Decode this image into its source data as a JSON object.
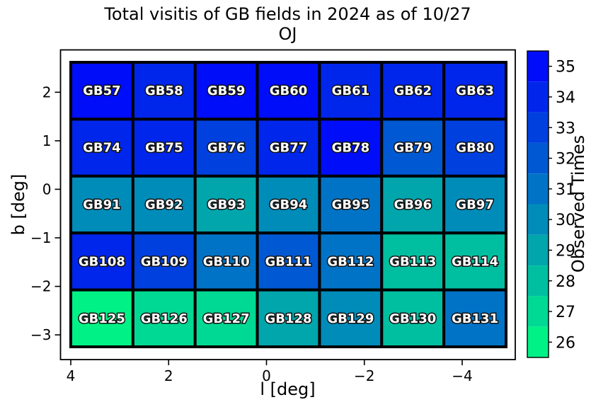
{
  "title": {
    "line1": "Total visitis of GB fields in 2024 as of 10/27",
    "line2": "OJ"
  },
  "axes": {
    "xlabel": "l [deg]",
    "ylabel": "b [deg]"
  },
  "colorbar": {
    "label": "Observed Times",
    "tick_labels": [
      "26",
      "27",
      "28",
      "29",
      "30",
      "31",
      "32",
      "33",
      "34",
      "35"
    ],
    "tick_values": [
      26,
      27,
      28,
      29,
      30,
      31,
      32,
      33,
      34,
      35
    ],
    "vmin": 25.5,
    "vmax": 35.5,
    "colormap": "winter_r",
    "color_low": "#00f286",
    "color_high": "#000df9"
  },
  "chart_data": {
    "type": "heatmap",
    "title": "Total visitis of GB fields in 2024 as of 10/27 OJ",
    "xlabel": "l [deg]",
    "ylabel": "b [deg]",
    "colorbar_label": "Observed Times",
    "colormap": "winter_r",
    "value_range": [
      25.5,
      35.5
    ],
    "x_tick_labels": [
      "4",
      "2",
      "0",
      "−2",
      "−4"
    ],
    "x_tick_values": [
      4,
      2,
      0,
      -2,
      -4
    ],
    "y_tick_labels": [
      "2",
      "1",
      "0",
      "−1",
      "−2",
      "−3"
    ],
    "y_tick_values": [
      2,
      1,
      0,
      -1,
      -2,
      -3
    ],
    "x_axis_inverted": true,
    "grid_on": false,
    "rows": [
      {
        "fields": [
          "GB57",
          "GB58",
          "GB59",
          "GB60",
          "GB61",
          "GB62",
          "GB63"
        ],
        "values": [
          35,
          34,
          35,
          35,
          34,
          34,
          34
        ]
      },
      {
        "fields": [
          "GB74",
          "GB75",
          "GB76",
          "GB77",
          "GB78",
          "GB79",
          "GB80"
        ],
        "values": [
          34,
          34,
          33,
          34,
          35,
          32,
          33
        ]
      },
      {
        "fields": [
          "GB91",
          "GB92",
          "GB93",
          "GB94",
          "GB95",
          "GB96",
          "GB97"
        ],
        "values": [
          30,
          30,
          29,
          30,
          31,
          29,
          30
        ]
      },
      {
        "fields": [
          "GB108",
          "GB109",
          "GB110",
          "GB111",
          "GB112",
          "GB113",
          "GB114"
        ],
        "values": [
          34,
          33,
          31,
          32,
          31,
          28,
          28
        ]
      },
      {
        "fields": [
          "GB125",
          "GB126",
          "GB127",
          "GB128",
          "GB129",
          "GB130",
          "GB131"
        ],
        "values": [
          26,
          27,
          27,
          29,
          30,
          28,
          31
        ]
      }
    ]
  }
}
